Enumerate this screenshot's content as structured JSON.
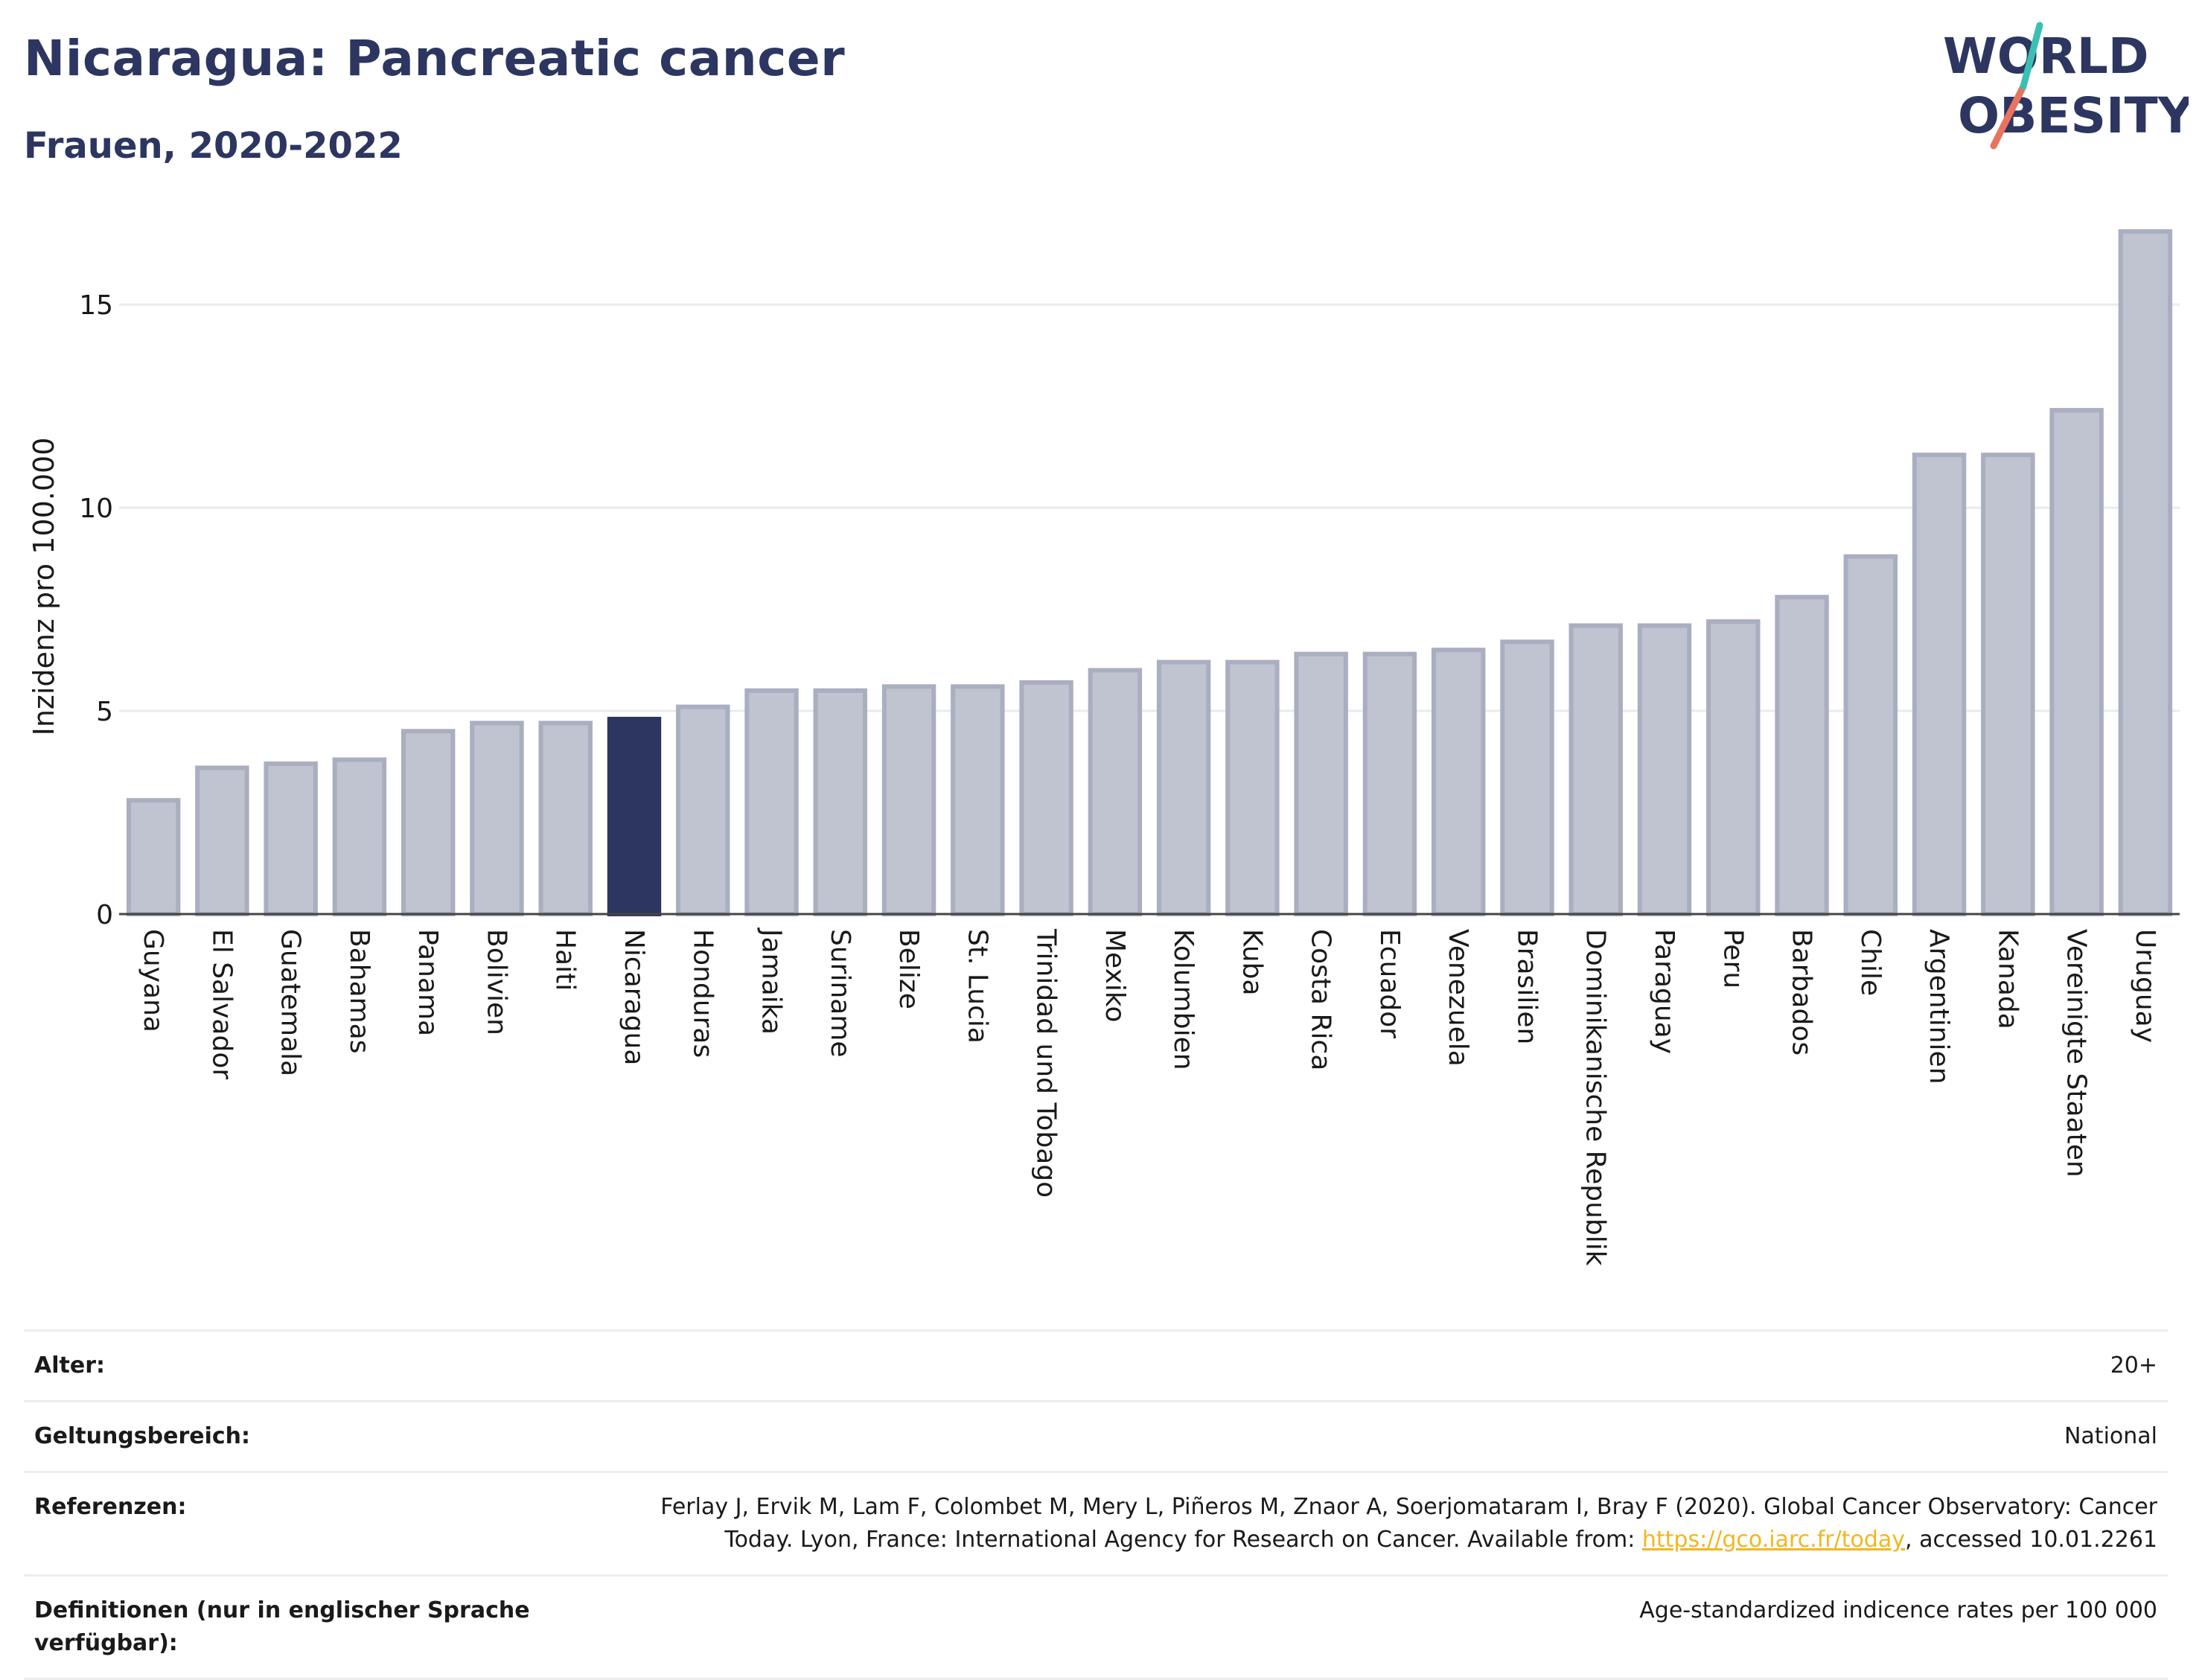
{
  "header": {
    "title": "Nicaragua: Pancreatic cancer",
    "subtitle": "Frauen, 2020-2022"
  },
  "logo": {
    "line1": "WORLD",
    "line2": "OBESITY",
    "colors": {
      "text": "#2c3660",
      "slash_top": "#3bbfb3",
      "slash_bottom": "#e8735e"
    }
  },
  "chart_data": {
    "type": "bar",
    "title": "Nicaragua: Pancreatic cancer",
    "subtitle": "Frauen, 2020-2022",
    "xlabel": "",
    "ylabel": "Inzidenz pro 100.000",
    "ylim": [
      0,
      17
    ],
    "yticks": [
      0,
      5,
      10,
      15
    ],
    "grid": true,
    "highlight": "Nicaragua",
    "colors": {
      "bar": "#c0c3d0",
      "bar_stroke": "#a9aec0",
      "highlight": "#2c3660",
      "grid": "#e9ebf0",
      "axis": "#444444"
    },
    "categories": [
      "Guyana",
      "El Salvador",
      "Guatemala",
      "Bahamas",
      "Panama",
      "Bolivien",
      "Haiti",
      "Nicaragua",
      "Honduras",
      "Jamaika",
      "Suriname",
      "Belize",
      "St. Lucia",
      "Trinidad und Tobago",
      "Mexiko",
      "Kolumbien",
      "Kuba",
      "Costa Rica",
      "Ecuador",
      "Venezuela",
      "Brasilien",
      "Dominikanische Republik",
      "Paraguay",
      "Peru",
      "Barbados",
      "Chile",
      "Argentinien",
      "Kanada",
      "Vereinigte Staaten",
      "Uruguay"
    ],
    "values": [
      2.8,
      3.6,
      3.7,
      3.8,
      4.5,
      4.7,
      4.7,
      4.8,
      5.1,
      5.5,
      5.5,
      5.6,
      5.6,
      5.7,
      6.0,
      6.2,
      6.2,
      6.4,
      6.4,
      6.5,
      6.7,
      7.1,
      7.1,
      7.2,
      7.8,
      8.8,
      11.3,
      11.3,
      12.4,
      16.8
    ]
  },
  "meta": [
    {
      "label": "Alter:",
      "value": "20+"
    },
    {
      "label": "Geltungsbereich:",
      "value": "National"
    },
    {
      "label": "Referenzen:",
      "value_pre": "Ferlay J, Ervik M, Lam F, Colombet M, Mery L, Piñeros M, Znaor A, Soerjomataram I, Bray F (2020). Global Cancer Observatory: Cancer Today. Lyon, France: International Agency for Research on Cancer. Available from: ",
      "link": "https://gco.iarc.fr/today",
      "value_post": ", accessed 10.01.2261"
    },
    {
      "label": "Definitionen (nur in englischer Sprache verfügbar):",
      "value": "Age-standardized indicence rates per 100 000"
    }
  ]
}
